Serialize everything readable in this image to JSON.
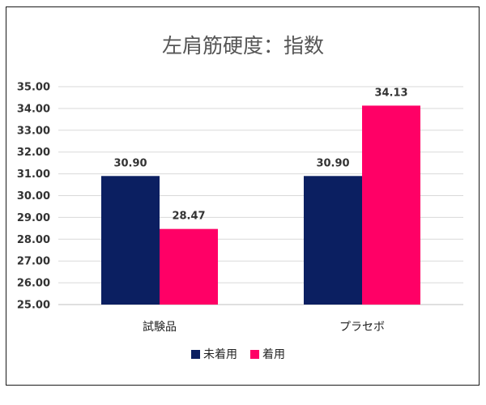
{
  "chart_data": {
    "type": "bar",
    "title": "左肩筋硬度：指数",
    "xlabel": "",
    "ylabel": "",
    "categories": [
      "試験品",
      "プラセボ"
    ],
    "series": [
      {
        "name": "未着用",
        "color": "#0b1f61",
        "values": [
          30.9,
          30.9
        ]
      },
      {
        "name": "着用",
        "color": "#ff0066",
        "values": [
          28.47,
          34.13
        ]
      }
    ],
    "data_labels": [
      [
        "30.90",
        "30.90"
      ],
      [
        "28.47",
        "34.13"
      ]
    ],
    "ylim": [
      25.0,
      35.0
    ],
    "ytick_step": 1.0,
    "yticks": [
      "25.00",
      "26.00",
      "27.00",
      "28.00",
      "29.00",
      "30.00",
      "31.00",
      "32.00",
      "33.00",
      "34.00",
      "35.00"
    ],
    "grid": true,
    "legend_position": "bottom"
  }
}
